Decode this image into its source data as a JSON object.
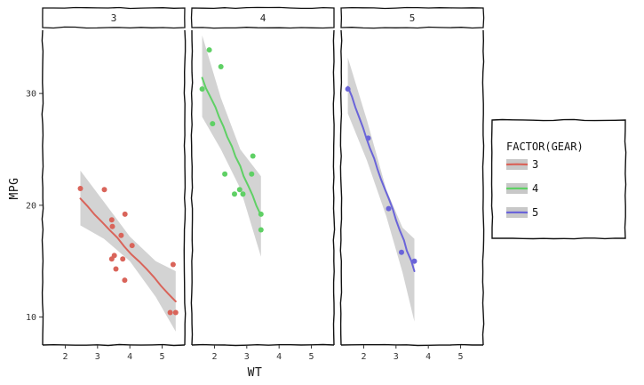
{
  "chart_data": {
    "type": "scatter",
    "style": "xkcd hand-drawn",
    "xlabel": "WT",
    "ylabel": "MPG",
    "facet_variable": "gear",
    "facets": [
      "3",
      "4",
      "5"
    ],
    "x_ticks": [
      "2",
      "3",
      "4",
      "5"
    ],
    "x_tick_values": [
      2,
      3,
      4,
      5
    ],
    "y_ticks": [
      "10",
      "20",
      "30"
    ],
    "y_tick_values": [
      10,
      20,
      30
    ],
    "xlim": [
      1.3,
      5.7
    ],
    "ylim": [
      7.5,
      35.5
    ],
    "grid": false,
    "legend": {
      "title": "FACTOR(GEAR)",
      "placement": "right",
      "entries": [
        "3",
        "4",
        "5"
      ]
    },
    "colors": {
      "3": "#d9645a",
      "4": "#5fd065",
      "5": "#6a64d9",
      "band": "#c8c8c8"
    },
    "series": [
      {
        "name": "3",
        "points": [
          {
            "x": 2.47,
            "y": 21.5
          },
          {
            "x": 3.21,
            "y": 21.4
          },
          {
            "x": 3.44,
            "y": 18.7
          },
          {
            "x": 3.46,
            "y": 18.1
          },
          {
            "x": 3.57,
            "y": 14.3
          },
          {
            "x": 3.73,
            "y": 17.3
          },
          {
            "x": 3.78,
            "y": 15.2
          },
          {
            "x": 3.84,
            "y": 13.3
          },
          {
            "x": 3.85,
            "y": 19.2
          },
          {
            "x": 4.07,
            "y": 16.4
          },
          {
            "x": 3.44,
            "y": 15.2
          },
          {
            "x": 3.52,
            "y": 15.5
          },
          {
            "x": 5.25,
            "y": 10.4
          },
          {
            "x": 5.34,
            "y": 14.7
          },
          {
            "x": 5.42,
            "y": 10.4
          }
        ],
        "fit": {
          "x": [
            2.47,
            5.42
          ],
          "y": [
            20.6,
            11.4
          ]
        },
        "band": {
          "x": [
            2.47,
            3.2,
            4.0,
            4.8,
            5.42
          ],
          "lower": [
            18.2,
            17.0,
            15.0,
            11.8,
            8.7
          ],
          "upper": [
            23.1,
            20.3,
            17.2,
            15.0,
            14.1
          ]
        }
      },
      {
        "name": "4",
        "points": [
          {
            "x": 1.62,
            "y": 30.4
          },
          {
            "x": 1.84,
            "y": 33.9
          },
          {
            "x": 1.94,
            "y": 27.3
          },
          {
            "x": 2.2,
            "y": 32.4
          },
          {
            "x": 2.32,
            "y": 22.8
          },
          {
            "x": 2.62,
            "y": 21.0
          },
          {
            "x": 2.78,
            "y": 21.4
          },
          {
            "x": 2.88,
            "y": 21.0
          },
          {
            "x": 3.15,
            "y": 22.8
          },
          {
            "x": 3.19,
            "y": 24.4
          },
          {
            "x": 3.44,
            "y": 17.8
          },
          {
            "x": 3.44,
            "y": 19.2
          }
        ],
        "fit": {
          "x": [
            1.62,
            3.44
          ],
          "y": [
            31.4,
            19.1
          ]
        },
        "band": {
          "x": [
            1.62,
            2.2,
            2.8,
            3.44
          ],
          "lower": [
            27.9,
            25.0,
            21.5,
            15.4
          ],
          "upper": [
            35.2,
            29.6,
            25.0,
            22.6
          ]
        }
      },
      {
        "name": "5",
        "points": [
          {
            "x": 1.51,
            "y": 30.4
          },
          {
            "x": 2.14,
            "y": 26.0
          },
          {
            "x": 2.77,
            "y": 19.7
          },
          {
            "x": 3.17,
            "y": 15.8
          },
          {
            "x": 3.57,
            "y": 15.0
          }
        ],
        "fit": {
          "x": [
            1.51,
            3.57
          ],
          "y": [
            30.6,
            14.1
          ]
        },
        "band": {
          "x": [
            1.51,
            2.1,
            2.7,
            3.2,
            3.57
          ],
          "lower": [
            28.2,
            24.0,
            19.0,
            14.0,
            9.6
          ],
          "upper": [
            33.2,
            27.6,
            21.4,
            18.0,
            17.0
          ]
        }
      }
    ]
  }
}
